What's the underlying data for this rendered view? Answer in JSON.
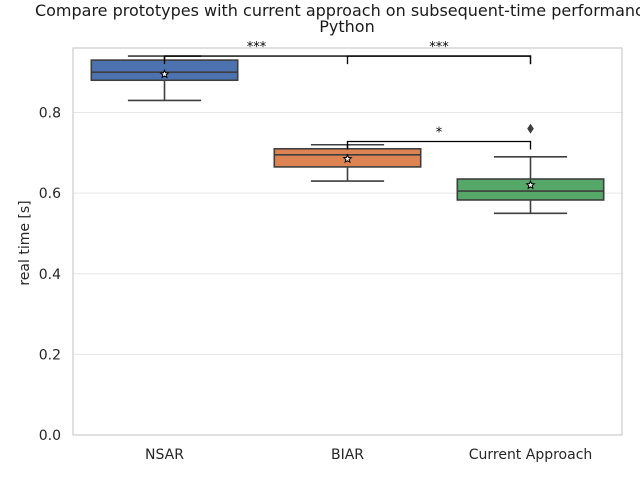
{
  "chart_data": {
    "type": "box",
    "title_line1": "Compare prototypes with current approach on subsequent-time performance:",
    "title_line2": "Python",
    "xlabel": "",
    "ylabel": "real time [s]",
    "ylim": [
      0.0,
      0.96
    ],
    "yticks": [
      "0.0",
      "0.2",
      "0.4",
      "0.6",
      "0.8"
    ],
    "grid": true,
    "categories": [
      "NSAR",
      "BIAR",
      "Current Approach"
    ],
    "colors": [
      "#4c72b0",
      "#dd8452",
      "#55a868"
    ],
    "boxes": [
      {
        "name": "NSAR",
        "whisker_low": 0.83,
        "q1": 0.88,
        "median": 0.9,
        "q3": 0.93,
        "whisker_high": 0.94,
        "mean": 0.895,
        "outliers": []
      },
      {
        "name": "BIAR",
        "whisker_low": 0.63,
        "q1": 0.665,
        "median": 0.695,
        "q3": 0.71,
        "whisker_high": 0.72,
        "mean": 0.685,
        "outliers": []
      },
      {
        "name": "Current Approach",
        "whisker_low": 0.55,
        "q1": 0.583,
        "median": 0.605,
        "q3": 0.635,
        "whisker_high": 0.69,
        "mean": 0.62,
        "outliers": [
          0.76
        ]
      }
    ],
    "significance": [
      {
        "from": 0,
        "to": 2,
        "label": "***",
        "y": 0.94
      },
      {
        "from": 1,
        "to": 2,
        "label": "***",
        "y": 0.94
      },
      {
        "from": 1,
        "to": 2,
        "label": "*",
        "y": 0.728
      }
    ]
  }
}
